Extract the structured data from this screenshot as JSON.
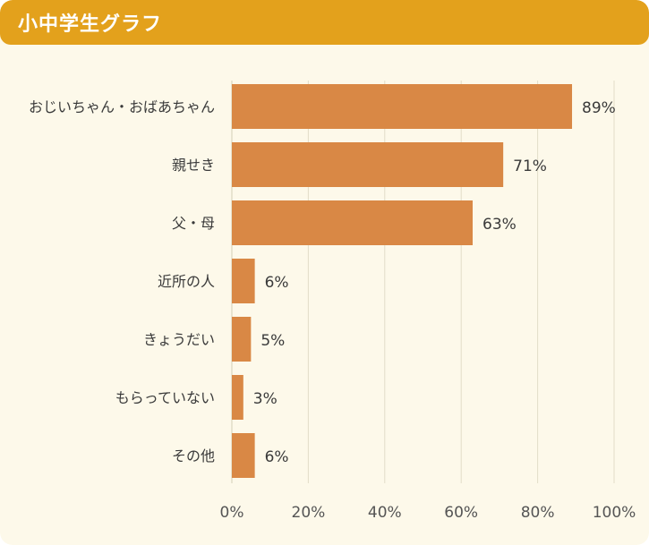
{
  "header": {
    "title": "小中学生グラフ"
  },
  "colors": {
    "header": "#e3a11c",
    "bar": "#d98845",
    "background": "#fdf9ea",
    "grid": "#e2ddc8"
  },
  "chart_data": {
    "type": "bar",
    "orientation": "horizontal",
    "categories": [
      "おじいちゃん・おばあちゃん",
      "親せき",
      "父・母",
      "近所の人",
      "きょうだい",
      "もらっていない",
      "その他"
    ],
    "values": [
      89,
      71,
      63,
      6,
      5,
      3,
      6
    ],
    "value_labels": [
      "89%",
      "71%",
      "63%",
      "6%",
      "5%",
      "3%",
      "6%"
    ],
    "xticks": [
      "0%",
      "20%",
      "40%",
      "60%",
      "80%",
      "100%"
    ],
    "xlim": [
      0,
      100
    ],
    "grid": true
  }
}
